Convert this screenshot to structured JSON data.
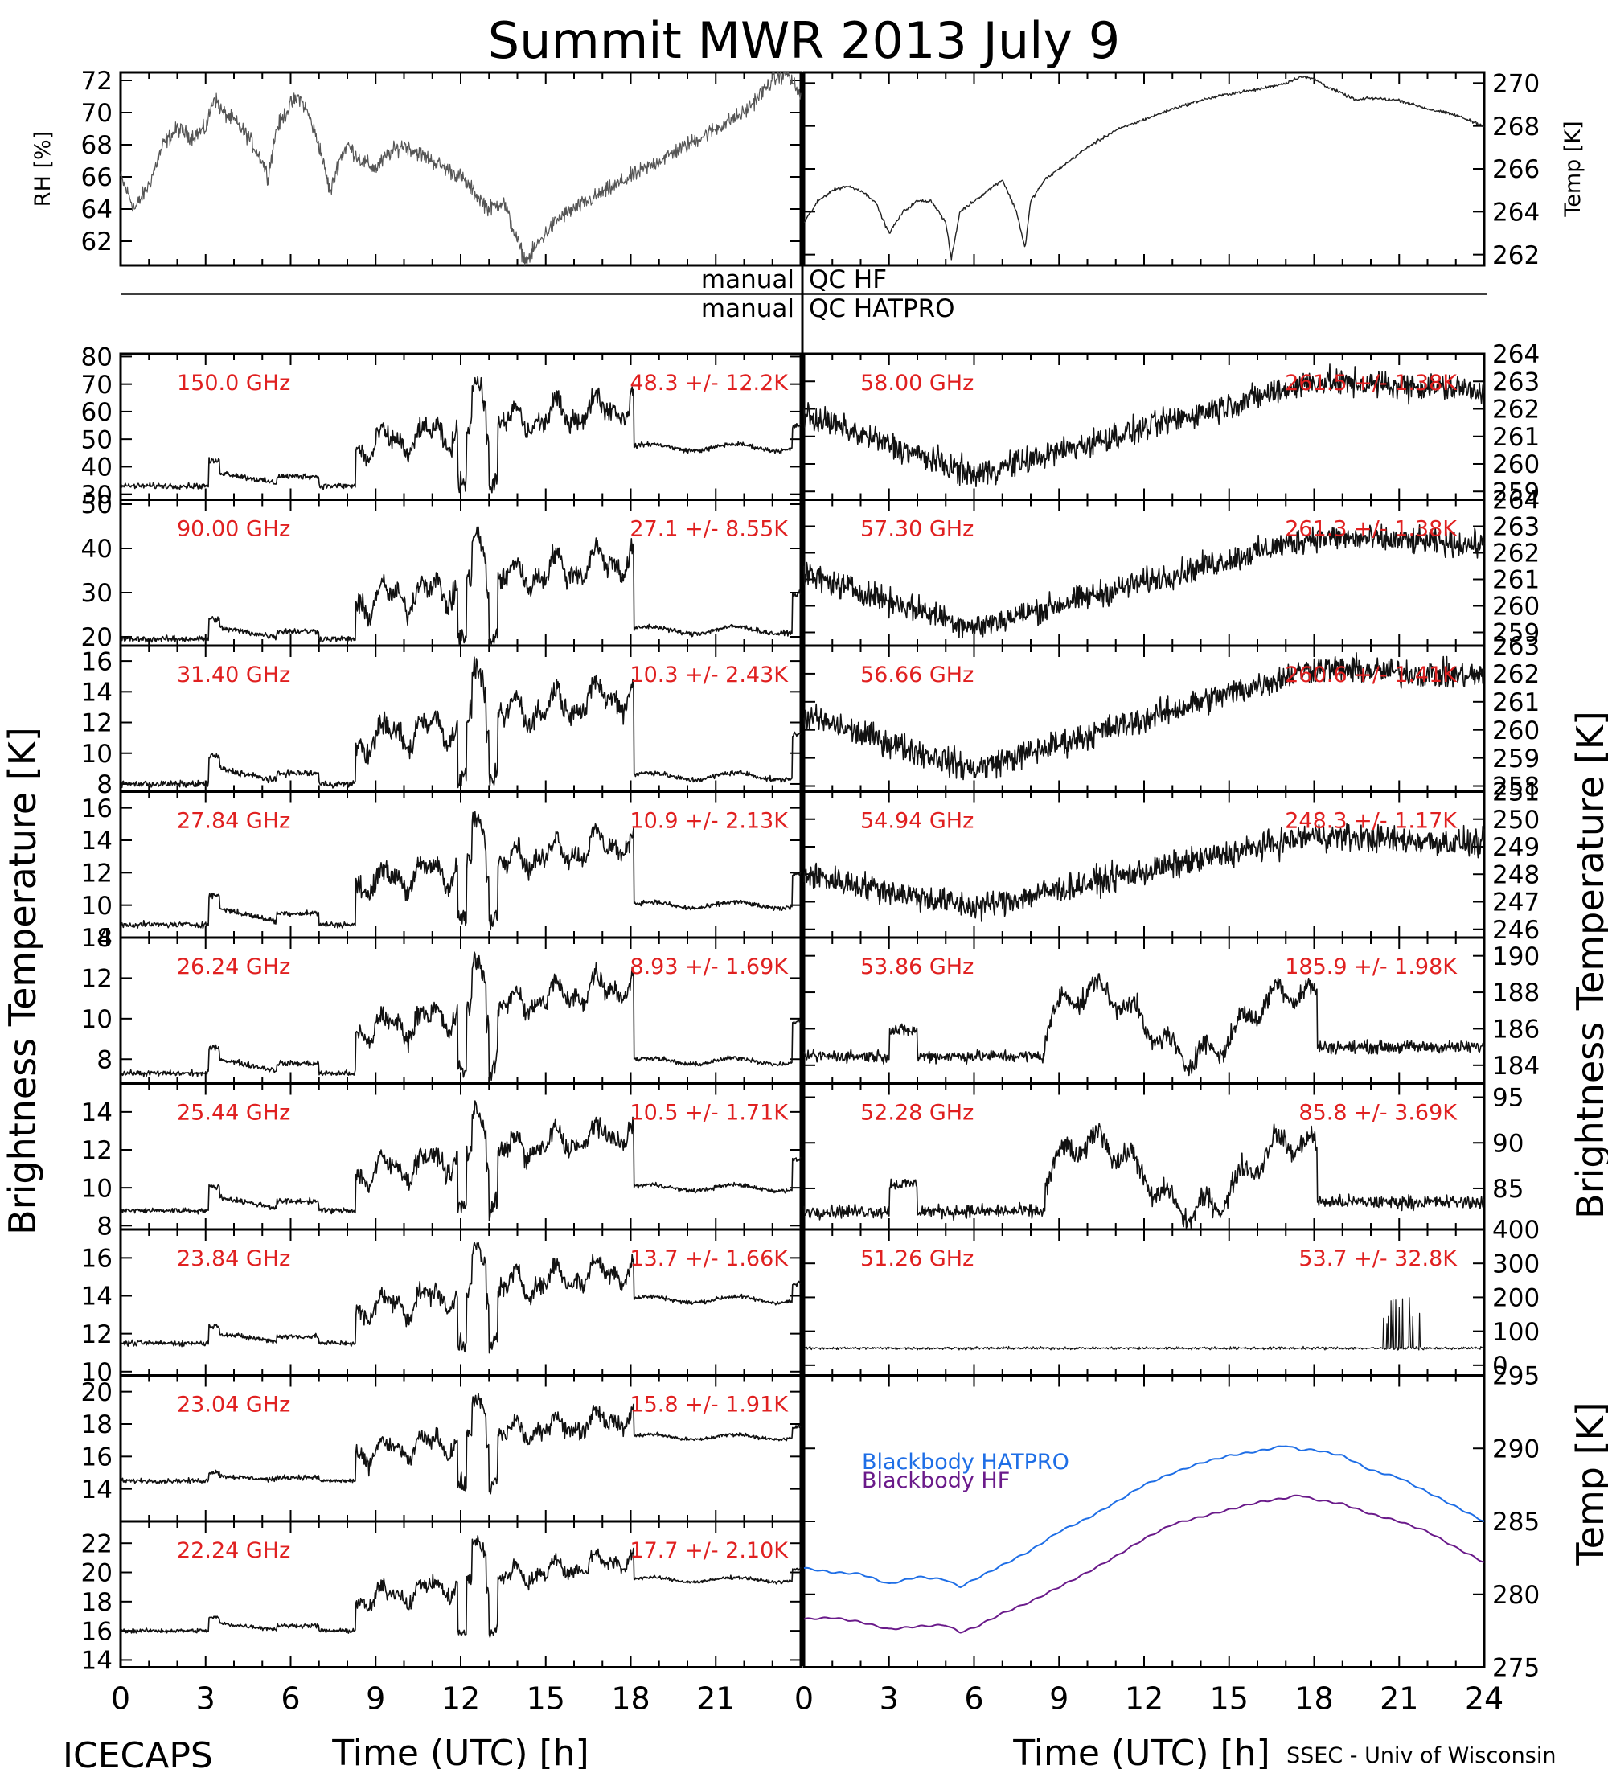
{
  "chart_data": {
    "type": "line",
    "title": "Summit MWR 2013 July  9",
    "footer_left": "ICECAPS",
    "footer_right": "SSEC - Univ of Wisconsin",
    "xlabel": "Time (UTC) [h]",
    "xlim": [
      0,
      24
    ],
    "x_ticks_left": [
      "0",
      "3",
      "6",
      "9",
      "12",
      "15",
      "18",
      "21"
    ],
    "x_ticks_right": [
      "0",
      "3",
      "6",
      "9",
      "12",
      "15",
      "18",
      "21",
      "24"
    ],
    "left_ylabel": "Brightness Temperature [K]",
    "right_ylabel": "Brightness Temperature [K]",
    "bb_ylabel": "Temp [K]",
    "qc_labels": [
      {
        "left": "manual",
        "right": "QC HF"
      },
      {
        "left": "manual",
        "right": "QC HATPRO"
      }
    ],
    "met": {
      "rh": {
        "ylabel": "RH [%]",
        "ylim": [
          60.5,
          72.5
        ],
        "ticks": [
          "62",
          "64",
          "66",
          "68",
          "70",
          "72"
        ],
        "x": [
          0,
          0.5,
          1,
          1.5,
          2,
          2.5,
          3,
          3.3,
          3.6,
          4,
          4.5,
          5,
          5.2,
          5.5,
          6,
          6.3,
          6.6,
          7,
          7.4,
          7.7,
          8,
          8.5,
          9,
          9.5,
          10,
          10.5,
          11,
          11.5,
          12,
          12.5,
          13,
          13.5,
          14,
          14.3,
          14.6,
          15,
          15.5,
          16,
          16.5,
          17,
          17.5,
          18,
          18.5,
          19,
          19.5,
          20,
          20.5,
          21,
          21.5,
          22,
          22.5,
          23,
          23.5,
          24
        ],
        "y": [
          66,
          64,
          65.5,
          68,
          69,
          68.5,
          69,
          71,
          70,
          69.5,
          68.5,
          67,
          66,
          69,
          70.5,
          71,
          70,
          68,
          65,
          67,
          68,
          67,
          66.5,
          67.5,
          68,
          67.5,
          67,
          66.5,
          66,
          65,
          64,
          64.5,
          62,
          60.7,
          61.5,
          62.5,
          63.5,
          64,
          64.5,
          65,
          65.5,
          66,
          66.5,
          67,
          67.5,
          68,
          68.5,
          69,
          69.5,
          70,
          71,
          72,
          72.5,
          71
        ]
      },
      "temp": {
        "ylabel": "Temp [K]",
        "ylim": [
          261.5,
          270.5
        ],
        "ticks": [
          "262",
          "264",
          "266",
          "268",
          "270"
        ],
        "x": [
          0,
          0.5,
          1,
          1.5,
          2,
          2.5,
          3,
          3.5,
          4,
          4.5,
          5,
          5.2,
          5.5,
          6,
          6.5,
          7,
          7.5,
          7.8,
          8,
          8.5,
          9,
          10,
          11,
          12,
          13,
          14,
          15,
          16,
          17,
          17.5,
          18,
          18.5,
          19,
          19.5,
          20,
          21,
          22,
          23,
          24
        ],
        "y": [
          263.5,
          264.5,
          265,
          265.2,
          265,
          264.5,
          263,
          264,
          264.5,
          264.5,
          263.5,
          261.8,
          264,
          264.5,
          265,
          265.5,
          264,
          262.3,
          264.5,
          265.5,
          266,
          267,
          267.8,
          268.3,
          268.8,
          269.2,
          269.5,
          269.7,
          270,
          270.3,
          270.2,
          269.8,
          269.5,
          269.2,
          269.3,
          269.2,
          268.8,
          268.5,
          268
        ]
      }
    },
    "bb": {
      "ylim": [
        275,
        295
      ],
      "ticks": [
        "275",
        "280",
        "285",
        "290",
        "295"
      ],
      "series": [
        {
          "name": "Blackbody HATPRO",
          "color": "#1e6ee6",
          "x": [
            0,
            1,
            2,
            3,
            4,
            5,
            5.5,
            6,
            7,
            8,
            9,
            10,
            11,
            12,
            13,
            14,
            15,
            16,
            17,
            17.5,
            18,
            19,
            20,
            21,
            22,
            23,
            24
          ],
          "y": [
            281.8,
            281.5,
            281.4,
            280.7,
            281.2,
            281,
            280.5,
            281,
            282,
            283,
            284.3,
            285.2,
            286.3,
            287.5,
            288.3,
            289,
            289.5,
            289.8,
            290.2,
            289.9,
            289.9,
            289.5,
            288.5,
            288,
            287,
            286,
            285
          ]
        },
        {
          "name": "Blackbody HF",
          "color": "#6a1a8a",
          "x": [
            0,
            1,
            2,
            3,
            4,
            5,
            5.5,
            6,
            7,
            8,
            9,
            10,
            11,
            12,
            13,
            14,
            15,
            16,
            17,
            17.5,
            18,
            19,
            20,
            21,
            22,
            23,
            24
          ],
          "y": [
            278.3,
            278.4,
            278.1,
            277.6,
            277.8,
            277.9,
            277.4,
            277.7,
            278.7,
            279.5,
            280.5,
            281.5,
            282.6,
            283.8,
            284.8,
            285.3,
            285.8,
            286.3,
            286.6,
            286.8,
            286.5,
            286.2,
            285.5,
            285,
            284.3,
            283.2,
            282.2
          ]
        }
      ]
    },
    "left_channels": [
      {
        "freq": "150.0 GHz",
        "stat": "48.3 +/-  12.2K",
        "ylim": [
          28,
          81
        ],
        "ticks": [
          "30",
          "40",
          "50",
          "60",
          "70",
          "80"
        ],
        "base": 33,
        "mid": 38,
        "hi": 63,
        "post": 47,
        "var": 3
      },
      {
        "freq": "90.00 GHz",
        "stat": "27.1 +/-  8.55K",
        "ylim": [
          18,
          51
        ],
        "ticks": [
          "20",
          "30",
          "40",
          "50"
        ],
        "base": 19.5,
        "mid": 22,
        "hi": 38,
        "post": 21.5,
        "var": 2
      },
      {
        "freq": "31.40 GHz",
        "stat": "10.3 +/- 2.43K",
        "ylim": [
          7.5,
          17
        ],
        "ticks": [
          "8",
          "10",
          "12",
          "14",
          "16"
        ],
        "base": 8,
        "mid": 9,
        "hi": 14,
        "post": 8.5,
        "var": 0.6
      },
      {
        "freq": "27.84 GHz",
        "stat": "10.9 +/- 2.13K",
        "ylim": [
          8,
          17
        ],
        "ticks": [
          "8",
          "10",
          "12",
          "14",
          "16"
        ],
        "base": 8.8,
        "mid": 9.8,
        "hi": 14,
        "post": 10,
        "var": 0.5
      },
      {
        "freq": "26.24 GHz",
        "stat": "8.93 +/- 1.69K",
        "ylim": [
          6.8,
          14
        ],
        "ticks": [
          "8",
          "10",
          "12",
          "14"
        ],
        "base": 7.3,
        "mid": 8,
        "hi": 11.8,
        "post": 7.9,
        "var": 0.4
      },
      {
        "freq": "25.44 GHz",
        "stat": "10.5 +/- 1.71K",
        "ylim": [
          7.8,
          15.5
        ],
        "ticks": [
          "8",
          "10",
          "12",
          "14"
        ],
        "base": 8.8,
        "mid": 9.5,
        "hi": 13,
        "post": 10,
        "var": 0.4
      },
      {
        "freq": "23.84 GHz",
        "stat": "13.7 +/- 1.66K",
        "ylim": [
          9.8,
          17.5
        ],
        "ticks": [
          "10",
          "12",
          "14",
          "16"
        ],
        "base": 11.5,
        "mid": 12,
        "hi": 15.5,
        "post": 13.8,
        "var": 0.4
      },
      {
        "freq": "23.04 GHz",
        "stat": "15.8 +/- 1.91K",
        "ylim": [
          12,
          21
        ],
        "ticks": [
          "14",
          "16",
          "18",
          "20"
        ],
        "base": 14.5,
        "mid": 14.8,
        "hi": 18.5,
        "post": 17.2,
        "var": 0.4
      },
      {
        "freq": "22.24 GHz",
        "stat": "17.7 +/- 2.10K",
        "ylim": [
          13.5,
          23.5
        ],
        "ticks": [
          "14",
          "16",
          "18",
          "20",
          "22"
        ],
        "base": 16,
        "mid": 16.5,
        "hi": 21,
        "post": 19.5,
        "var": 0.4
      }
    ],
    "right_channels": [
      {
        "freq": "58.00 GHz",
        "stat": "261.5 +/- 1.38K",
        "ylim": [
          258.7,
          264
        ],
        "ticks": [
          "259",
          "260",
          "261",
          "262",
          "263",
          "264"
        ],
        "kind": "smooth",
        "a": 261.8,
        "b": 259.6,
        "c": 263
      },
      {
        "freq": "57.30 GHz",
        "stat": "261.3 +/- 1.38K",
        "ylim": [
          258.5,
          264
        ],
        "ticks": [
          "259",
          "260",
          "261",
          "262",
          "263",
          "264"
        ],
        "kind": "smooth",
        "a": 261.2,
        "b": 259.2,
        "c": 262.6
      },
      {
        "freq": "56.66 GHz",
        "stat": "260.6 +/- 1.41K",
        "ylim": [
          257.8,
          263
        ],
        "ticks": [
          "258",
          "259",
          "260",
          "261",
          "262",
          "263"
        ],
        "kind": "smooth",
        "a": 260.5,
        "b": 258.6,
        "c": 262.2
      },
      {
        "freq": "54.94 GHz",
        "stat": "248.3 +/- 1.17K",
        "ylim": [
          245.7,
          251
        ],
        "ticks": [
          "246",
          "247",
          "248",
          "249",
          "250",
          "251"
        ],
        "kind": "smooth",
        "a": 248,
        "b": 246.8,
        "c": 249.4
      },
      {
        "freq": "53.86 GHz",
        "stat": "185.9 +/- 1.98K",
        "ylim": [
          183,
          191
        ],
        "ticks": [
          "184",
          "186",
          "188",
          "190"
        ],
        "kind": "spiky",
        "base": 184.5,
        "hi": 188.5,
        "post": 185
      },
      {
        "freq": "52.28 GHz",
        "stat": "85.8 +/- 3.69K",
        "ylim": [
          80.5,
          96.5
        ],
        "ticks": [
          "85",
          "90",
          "95"
        ],
        "kind": "spiky",
        "base": 82.5,
        "hi": 91,
        "post": 83.5
      },
      {
        "freq": "51.26 GHz",
        "stat": "53.7 +/- 32.8K",
        "ylim": [
          -30,
          400
        ],
        "ticks": [
          "0",
          "100",
          "200",
          "300",
          "400"
        ],
        "kind": "flat",
        "base": 50
      }
    ]
  }
}
